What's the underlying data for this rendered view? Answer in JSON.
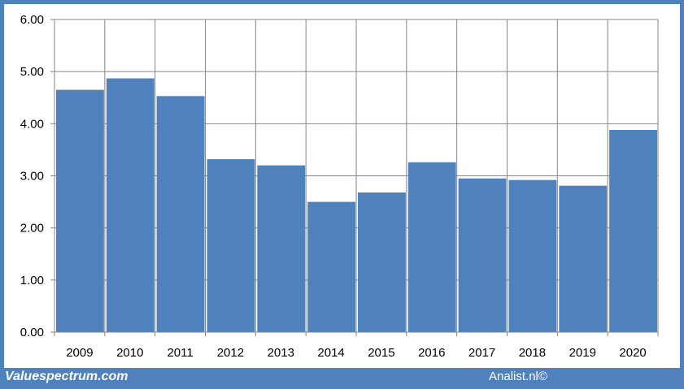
{
  "chart_data": {
    "type": "bar",
    "categories": [
      "2009",
      "2010",
      "2011",
      "2012",
      "2013",
      "2014",
      "2015",
      "2016",
      "2017",
      "2018",
      "2019",
      "2020"
    ],
    "values": [
      4.65,
      4.87,
      4.53,
      3.32,
      3.2,
      2.5,
      2.68,
      3.26,
      2.95,
      2.92,
      2.81,
      3.88
    ],
    "yticks": [
      "0.00",
      "1.00",
      "2.00",
      "3.00",
      "4.00",
      "5.00",
      "6.00"
    ],
    "ylim": [
      0,
      6
    ],
    "grid": true,
    "colors": {
      "bar": "#4f81bd",
      "grid": "#868686",
      "frame": "#4f81bd"
    }
  },
  "footer": {
    "source_left": "Valuespectrum.com",
    "source_right": "Analist.nl©"
  }
}
